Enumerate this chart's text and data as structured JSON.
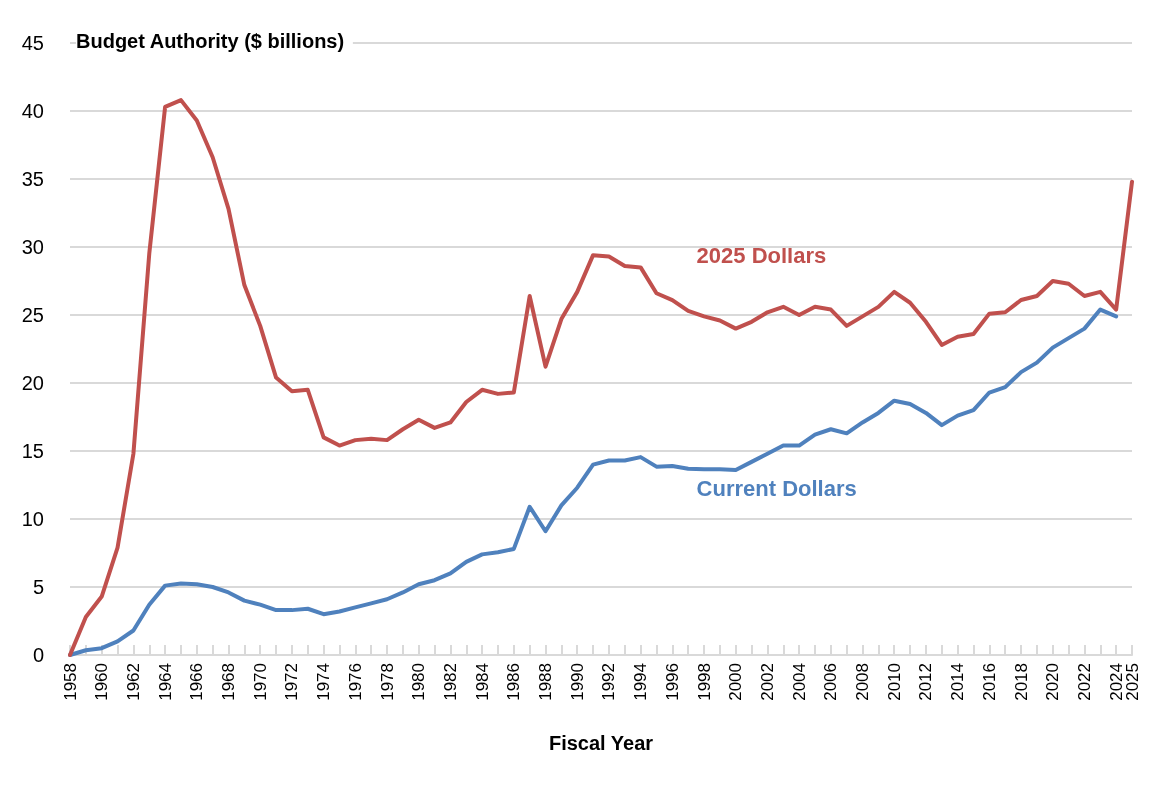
{
  "chart_data": {
    "type": "line",
    "xlabel": "Fiscal Year",
    "ylabel": "Budget Authority ($ billions)",
    "categories": [
      "1958",
      null,
      "1960",
      null,
      "1962",
      null,
      "1964",
      null,
      "1966",
      null,
      "1968",
      null,
      "1970",
      null,
      "1972",
      null,
      "1974",
      null,
      "1976",
      null,
      "1978",
      null,
      "1980",
      null,
      "1982",
      null,
      "1984",
      null,
      "1986",
      null,
      "1988",
      null,
      "1990",
      null,
      "1992",
      null,
      "1994",
      null,
      "1996",
      null,
      "1998",
      null,
      "2000",
      null,
      "2002",
      null,
      "2004",
      null,
      "2006",
      null,
      "2008",
      null,
      "2010",
      null,
      "2012",
      null,
      "2014",
      null,
      "2016",
      null,
      "2018",
      null,
      "2020",
      null,
      "2022",
      null,
      "2024",
      "2025"
    ],
    "series": [
      {
        "name": "2025 Dollars",
        "color": "#c0504d",
        "values": [
          0,
          2.8,
          4.3,
          7.9,
          14.8,
          29.5,
          40.3,
          40.8,
          39.3,
          36.6,
          32.8,
          27.2,
          24.2,
          20.4,
          19.4,
          19.5,
          16.0,
          15.4,
          15.8,
          15.9,
          15.8,
          16.6,
          17.3,
          16.7,
          17.1,
          18.6,
          19.5,
          19.2,
          19.3,
          26.4,
          21.2,
          24.7,
          26.7,
          29.4,
          29.3,
          28.6,
          28.5,
          26.6,
          26.1,
          25.3,
          24.9,
          24.6,
          24.0,
          24.5,
          25.2,
          25.6,
          25.0,
          25.6,
          25.4,
          24.2,
          24.9,
          25.6,
          26.7,
          25.9,
          24.5,
          22.8,
          23.4,
          23.6,
          25.1,
          25.2,
          26.1,
          26.4,
          27.5,
          27.3,
          26.4,
          26.7,
          25.4,
          34.8
        ]
      },
      {
        "name": "Current Dollars",
        "color": "#4f81bd",
        "values": [
          0,
          0.35,
          0.5,
          1.0,
          1.8,
          3.7,
          5.1,
          5.25,
          5.2,
          5.0,
          4.6,
          4.0,
          3.7,
          3.3,
          3.3,
          3.4,
          3.0,
          3.2,
          3.5,
          3.8,
          4.1,
          4.6,
          5.2,
          5.5,
          6.0,
          6.85,
          7.4,
          7.55,
          7.8,
          10.9,
          9.1,
          11.0,
          12.3,
          14.0,
          14.3,
          14.3,
          14.55,
          13.85,
          13.9,
          13.7,
          13.65,
          13.65,
          13.6,
          14.2,
          14.8,
          15.4,
          15.4,
          16.2,
          16.6,
          16.3,
          17.1,
          17.8,
          18.7,
          18.45,
          17.8,
          16.9,
          17.6,
          18.0,
          19.3,
          19.7,
          20.8,
          21.5,
          22.6,
          23.3,
          24.0,
          25.4,
          24.9,
          null
        ]
      }
    ],
    "ylim": [
      0,
      45
    ],
    "yticks": [
      0,
      5,
      10,
      15,
      20,
      25,
      30,
      35,
      40,
      45
    ],
    "grid": "y",
    "legend": false,
    "marker": "none",
    "line_style": "solid"
  }
}
